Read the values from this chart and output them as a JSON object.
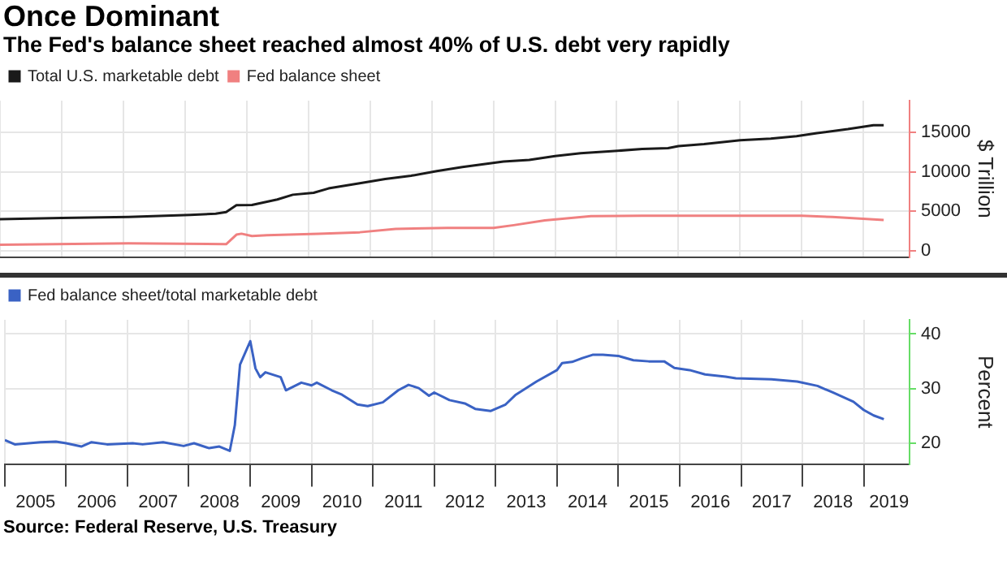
{
  "chart_data": [
    {
      "type": "line",
      "title": "Once Dominant",
      "subtitle": "The Fed's balance sheet reached almost 40% of U.S. debt very rapidly",
      "ylabel": "$ Trillion",
      "xlim": [
        "2005-01-01",
        "2019-10-01"
      ],
      "xticks": [
        {
          "value": "2005-01-01",
          "label": null
        },
        {
          "value": "2006-01-01",
          "label": null
        },
        {
          "value": "2007-01-01",
          "label": null
        },
        {
          "value": "2008-01-01",
          "label": null
        },
        {
          "value": "2009-01-01",
          "label": null
        },
        {
          "value": "2010-01-01",
          "label": null
        },
        {
          "value": "2011-01-01",
          "label": null
        },
        {
          "value": "2012-01-01",
          "label": null
        },
        {
          "value": "2013-01-01",
          "label": null
        },
        {
          "value": "2014-01-01",
          "label": null
        },
        {
          "value": "2015-01-01",
          "label": null
        },
        {
          "value": "2016-01-01",
          "label": null
        },
        {
          "value": "2017-01-01",
          "label": null
        },
        {
          "value": "2018-01-01",
          "label": null
        },
        {
          "value": "2019-01-01",
          "label": null
        }
      ],
      "ylim": [
        -800,
        19000
      ],
      "yticks": [
        0,
        5000,
        10000,
        15000
      ],
      "tick_labels": "y",
      "grid": true,
      "legend": "top left",
      "marker": "none",
      "line_style": "solid",
      "series": [
        {
          "name": "Total U.S. marketable debt",
          "color": "#1a1a1a",
          "x": [
            "2005-01",
            "2006-01",
            "2007-02",
            "2008-02",
            "2008-07",
            "2008-09",
            "2008-11",
            "2009-02",
            "2009-07",
            "2009-10",
            "2010-02",
            "2010-05",
            "2010-11",
            "2011-04",
            "2011-09",
            "2012-02",
            "2012-07",
            "2013-03",
            "2013-08",
            "2014-01",
            "2014-06",
            "2014-12",
            "2015-06",
            "2015-11",
            "2016-01",
            "2016-06",
            "2017-01",
            "2017-07",
            "2017-12",
            "2018-04",
            "2018-10",
            "2019-03",
            "2019-05"
          ],
          "values": [
            4000,
            4150,
            4300,
            4550,
            4700,
            4900,
            5780,
            5800,
            6500,
            7100,
            7350,
            7900,
            8550,
            9100,
            9500,
            10100,
            10600,
            11300,
            11500,
            12000,
            12350,
            12600,
            12900,
            13000,
            13250,
            13500,
            14000,
            14200,
            14500,
            14900,
            15400,
            15900,
            15900
          ]
        },
        {
          "name": "Fed balance sheet",
          "color": "#f08080",
          "x": [
            "2005-01",
            "2007-02",
            "2008-09",
            "2008-11",
            "2008-12",
            "2009-02",
            "2009-05",
            "2010-03",
            "2010-11",
            "2011-06",
            "2012-04",
            "2013-01",
            "2013-05",
            "2013-11",
            "2014-08",
            "2015-06",
            "2018-01",
            "2018-07",
            "2019-05"
          ],
          "values": [
            780,
            960,
            840,
            2050,
            2170,
            1870,
            1990,
            2170,
            2350,
            2770,
            2900,
            2900,
            3250,
            3850,
            4400,
            4450,
            4450,
            4280,
            3900
          ]
        }
      ]
    },
    {
      "type": "line",
      "ylabel": "Percent",
      "annotations": [
        "Source: Federal Reserve, U.S. Treasury"
      ],
      "xlim": [
        "2005-01-01",
        "2019-10-01"
      ],
      "xticks": [
        {
          "value": "2005-01-01",
          "label": null
        },
        {
          "value": "2005-07-02",
          "label": "2005"
        },
        {
          "value": "2006-01-01",
          "label": null
        },
        {
          "value": "2006-07-02",
          "label": "2006"
        },
        {
          "value": "2007-01-01",
          "label": null
        },
        {
          "value": "2007-07-02",
          "label": "2007"
        },
        {
          "value": "2008-01-01",
          "label": null
        },
        {
          "value": "2008-07-02",
          "label": "2008"
        },
        {
          "value": "2009-01-01",
          "label": null
        },
        {
          "value": "2009-07-02",
          "label": "2009"
        },
        {
          "value": "2010-01-01",
          "label": null
        },
        {
          "value": "2010-07-02",
          "label": "2010"
        },
        {
          "value": "2011-01-01",
          "label": null
        },
        {
          "value": "2011-07-02",
          "label": "2011"
        },
        {
          "value": "2012-01-01",
          "label": null
        },
        {
          "value": "2012-07-02",
          "label": "2012"
        },
        {
          "value": "2013-01-01",
          "label": null
        },
        {
          "value": "2013-07-02",
          "label": "2013"
        },
        {
          "value": "2014-01-01",
          "label": null
        },
        {
          "value": "2014-07-02",
          "label": "2014"
        },
        {
          "value": "2015-01-01",
          "label": null
        },
        {
          "value": "2015-07-02",
          "label": "2015"
        },
        {
          "value": "2016-01-01",
          "label": null
        },
        {
          "value": "2016-07-02",
          "label": "2016"
        },
        {
          "value": "2017-01-01",
          "label": null
        },
        {
          "value": "2017-07-02",
          "label": "2017"
        },
        {
          "value": "2018-01-01",
          "label": null
        },
        {
          "value": "2018-07-02",
          "label": "2018"
        },
        {
          "value": "2019-01-01",
          "label": null
        },
        {
          "value": "2019-06-01",
          "label": "2019"
        }
      ],
      "ylim": [
        16.2,
        42.6
      ],
      "yticks": [
        20,
        30,
        40
      ],
      "grid": true,
      "legend": "top left",
      "marker": "none",
      "line_style": "solid",
      "series": [
        {
          "name": "Fed balance sheet/total marketable debt",
          "color": "#3a62c4",
          "x": [
            "2005-01",
            "2005-03",
            "2005-08",
            "2005-11",
            "2006-01",
            "2006-04",
            "2006-06",
            "2006-09",
            "2007-02",
            "2007-04",
            "2007-08",
            "2007-12",
            "2008-02",
            "2008-05",
            "2008-07",
            "2008-09",
            "2008-10",
            "2008-11",
            "2009-01",
            "2009-02",
            "2009-03",
            "2009-04",
            "2009-07",
            "2009-08",
            "2009-11",
            "2010-01",
            "2010-02",
            "2010-05",
            "2010-07",
            "2010-10",
            "2010-12",
            "2011-03",
            "2011-06",
            "2011-08",
            "2011-10",
            "2011-12",
            "2012-01",
            "2012-04",
            "2012-07",
            "2012-09",
            "2012-12",
            "2013-03",
            "2013-05",
            "2013-09",
            "2014-01",
            "2014-02",
            "2014-04",
            "2014-06",
            "2014-08",
            "2014-10",
            "2015-01",
            "2015-04",
            "2015-07",
            "2015-10",
            "2015-12",
            "2016-03",
            "2016-06",
            "2016-10",
            "2016-12",
            "2017-07",
            "2017-12",
            "2018-04",
            "2018-07",
            "2018-11",
            "2019-01",
            "2019-03",
            "2019-05"
          ],
          "values": [
            20.6,
            19.8,
            20.2,
            20.3,
            20.0,
            19.4,
            20.2,
            19.8,
            20.0,
            19.8,
            20.2,
            19.5,
            20.0,
            19.1,
            19.4,
            18.6,
            23.3,
            34.4,
            38.7,
            33.7,
            32.1,
            33.0,
            32.1,
            29.7,
            31.1,
            30.6,
            31.1,
            29.7,
            28.9,
            27.1,
            26.8,
            27.5,
            29.7,
            30.7,
            30.1,
            28.7,
            29.3,
            27.9,
            27.3,
            26.3,
            25.9,
            27.1,
            28.9,
            31.3,
            33.4,
            34.7,
            34.9,
            35.6,
            36.2,
            36.2,
            36.0,
            35.2,
            35.0,
            35.0,
            33.8,
            33.4,
            32.6,
            32.2,
            31.9,
            31.7,
            31.3,
            30.5,
            29.3,
            27.6,
            26.1,
            25.1,
            24.4
          ]
        }
      ]
    }
  ]
}
